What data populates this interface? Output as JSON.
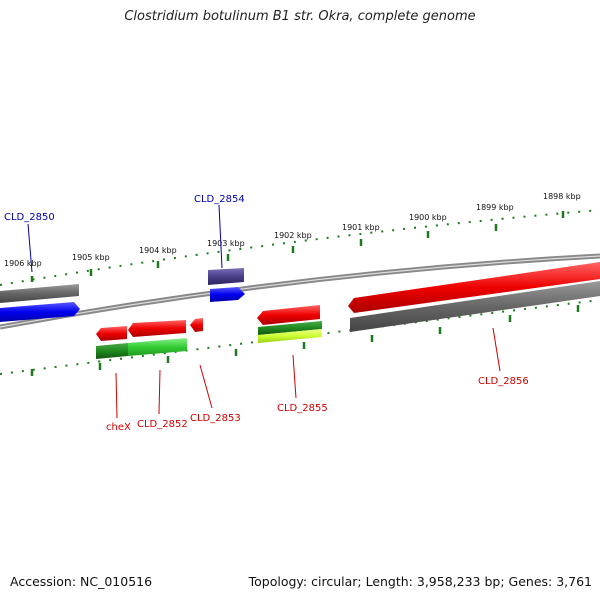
{
  "header": {
    "title": "Clostridium botulinum B1 str. Okra, complete genome"
  },
  "footer": {
    "accession": "Accession: NC_010516",
    "summary": "Topology: circular; Length: 3,958,233 bp; Genes: 3,761"
  },
  "colors": {
    "ruler": "#1f7a1f",
    "backbone": "#888888",
    "gene_blue": "#0000ee",
    "gene_red": "#ee0000",
    "gene_gray": "#666666",
    "gene_navy": "#4a3f8a",
    "gene_green": "#33cc33",
    "gene_darkgreen": "#1f8a1f",
    "gene_lime": "#ccff33",
    "label_blue": "#0000aa",
    "label_red": "#cc0000"
  },
  "tick_labels": [
    "1906 kbp",
    "1905 kbp",
    "1904 kbp",
    "1903 kbp",
    "1902 kbp",
    "1901 kbp",
    "1900 kbp",
    "1899 kbp",
    "1898 kbp"
  ],
  "gene_labels": [
    {
      "id": "CLD_2850",
      "color": "blue"
    },
    {
      "id": "CLD_2854",
      "color": "blue"
    },
    {
      "id": "cheX",
      "color": "red"
    },
    {
      "id": "CLD_2852",
      "color": "red"
    },
    {
      "id": "CLD_2853",
      "color": "red"
    },
    {
      "id": "CLD_2855",
      "color": "red"
    },
    {
      "id": "CLD_2856",
      "color": "red"
    }
  ]
}
